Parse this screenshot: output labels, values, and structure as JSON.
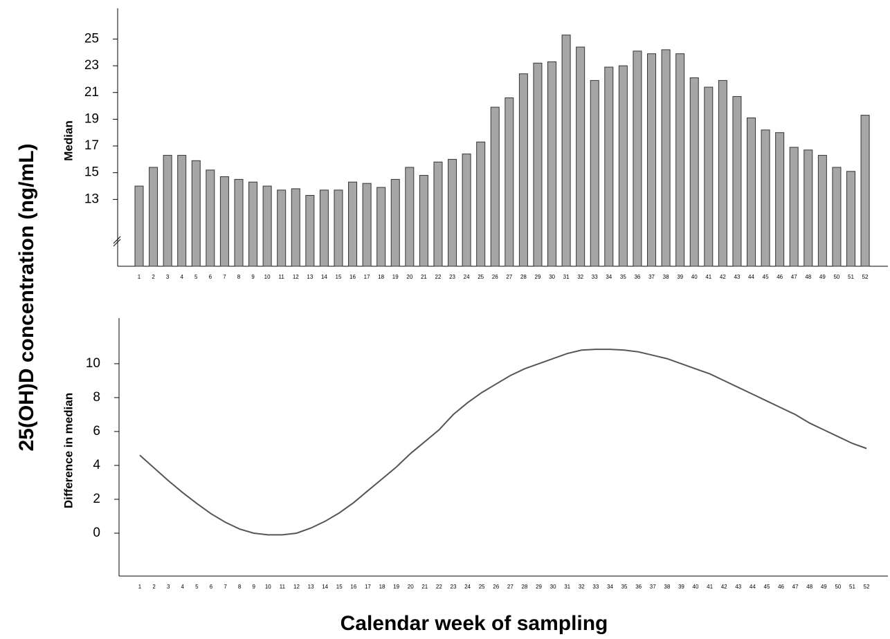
{
  "ylabel": "25(OH)D concentration (ng/mL)",
  "xlabel": "Calendar week of sampling",
  "chart_data": [
    {
      "type": "bar",
      "ylabel": "Median",
      "color": "#a6a6a6",
      "categories": [
        1,
        2,
        3,
        4,
        5,
        6,
        7,
        8,
        9,
        10,
        11,
        12,
        13,
        14,
        15,
        16,
        17,
        18,
        19,
        20,
        21,
        22,
        23,
        24,
        25,
        26,
        27,
        28,
        29,
        30,
        31,
        32,
        33,
        34,
        35,
        36,
        37,
        38,
        39,
        40,
        41,
        42,
        43,
        44,
        45,
        46,
        47,
        48,
        49,
        50,
        51,
        52
      ],
      "values": [
        14.0,
        15.4,
        16.3,
        16.3,
        15.9,
        15.2,
        14.7,
        14.5,
        14.3,
        14.0,
        13.7,
        13.8,
        13.3,
        13.7,
        13.7,
        14.3,
        14.2,
        13.9,
        14.5,
        15.4,
        14.8,
        15.8,
        16.0,
        16.4,
        17.3,
        19.9,
        20.6,
        22.4,
        23.2,
        23.3,
        25.3,
        24.4,
        21.9,
        22.9,
        23.0,
        24.1,
        23.9,
        24.2,
        23.9,
        22.1,
        21.4,
        21.9,
        20.7,
        19.1,
        18.2,
        18.0,
        16.9,
        16.7,
        16.3,
        15.4,
        15.1,
        19.3
      ],
      "ylim": [
        8,
        27.3
      ],
      "yticks": [
        13,
        15,
        17,
        19,
        21,
        23,
        25
      ]
    },
    {
      "type": "line",
      "ylabel": "Difference in median",
      "color": "#555555",
      "categories": [
        1,
        2,
        3,
        4,
        5,
        6,
        7,
        8,
        9,
        10,
        11,
        12,
        13,
        14,
        15,
        16,
        17,
        18,
        19,
        20,
        21,
        22,
        23,
        24,
        25,
        26,
        27,
        28,
        29,
        30,
        31,
        32,
        33,
        34,
        35,
        36,
        37,
        38,
        39,
        40,
        41,
        42,
        43,
        44,
        45,
        46,
        47,
        48,
        49,
        50,
        51,
        52
      ],
      "values": [
        4.6,
        3.85,
        3.1,
        2.4,
        1.75,
        1.15,
        0.65,
        0.25,
        0.0,
        -0.1,
        -0.1,
        0.0,
        0.3,
        0.7,
        1.2,
        1.8,
        2.5,
        3.2,
        3.9,
        4.7,
        5.4,
        6.1,
        7.0,
        7.7,
        8.3,
        8.8,
        9.3,
        9.7,
        10.0,
        10.3,
        10.6,
        10.8,
        10.85,
        10.85,
        10.8,
        10.7,
        10.5,
        10.3,
        10.0,
        9.7,
        9.4,
        9.0,
        8.6,
        8.2,
        7.8,
        7.4,
        7.0,
        6.5,
        6.1,
        5.7,
        5.3,
        5.0
      ],
      "ylim": [
        -2.53,
        12.69
      ],
      "yticks": [
        0,
        2,
        4,
        6,
        8,
        10
      ]
    }
  ]
}
